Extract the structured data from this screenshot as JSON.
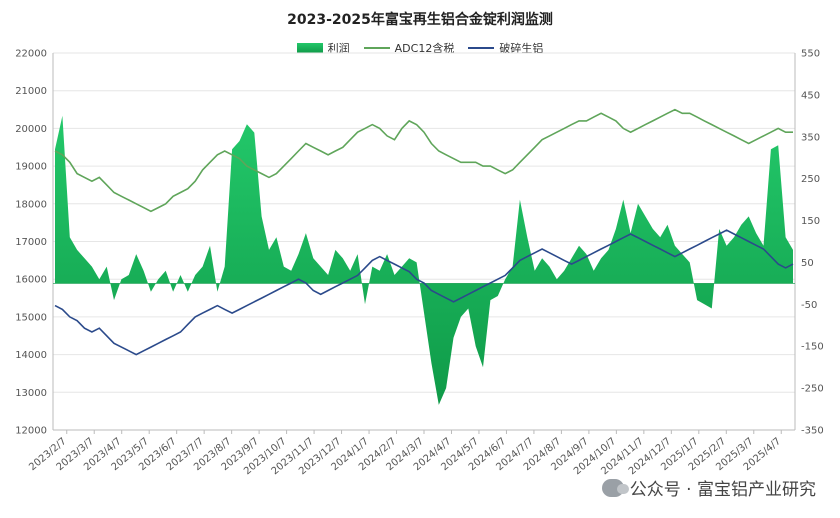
{
  "chart_data": {
    "type": "line",
    "title": "2023-2025年富宝再生铝合金锭利润监测",
    "legend": [
      "利润",
      "ADC12含税",
      "破碎生铝"
    ],
    "colors": {
      "profit_top": "#23c86a",
      "profit_bottom": "#0f9a48",
      "adc12": "#5fa55a",
      "scrap": "#2b4a8b"
    },
    "y_left": {
      "min": 12000,
      "max": 22000,
      "ticks": [
        12000,
        13000,
        14000,
        15000,
        16000,
        17000,
        18000,
        19000,
        20000,
        21000,
        22000
      ]
    },
    "y_right": {
      "min": -350,
      "max": 550,
      "ticks": [
        -350,
        -250,
        -150,
        -50,
        50,
        150,
        250,
        350,
        450,
        550
      ]
    },
    "x_labels": [
      "2023/2/7",
      "2023/3/7",
      "2023/4/7",
      "2023/5/7",
      "2023/6/7",
      "2023/7/7",
      "2023/8/7",
      "2023/9/7",
      "2023/10/7",
      "2023/11/7",
      "2023/12/7",
      "2024/1/7",
      "2024/2/7",
      "2024/3/7",
      "2024/4/7",
      "2024/5/7",
      "2024/6/7",
      "2024/7/7",
      "2024/8/7",
      "2024/9/7",
      "2024/10/7",
      "2024/11/7",
      "2024/12/7",
      "2025/1/7",
      "2025/2/7",
      "2025/3/7",
      "2025/4/7"
    ],
    "series": [
      {
        "name": "利润",
        "axis": "right",
        "values": [
          320,
          400,
          110,
          80,
          60,
          40,
          10,
          40,
          -40,
          10,
          20,
          70,
          30,
          -20,
          10,
          30,
          -20,
          20,
          -20,
          20,
          40,
          90,
          -20,
          40,
          320,
          340,
          380,
          360,
          160,
          80,
          110,
          40,
          30,
          70,
          120,
          60,
          40,
          20,
          80,
          60,
          30,
          70,
          -50,
          40,
          30,
          70,
          20,
          40,
          60,
          50,
          -70,
          -190,
          -290,
          -250,
          -130,
          -80,
          -60,
          -150,
          -200,
          -40,
          -30,
          10,
          40,
          200,
          110,
          30,
          60,
          40,
          10,
          30,
          60,
          90,
          70,
          30,
          60,
          80,
          130,
          200,
          120,
          190,
          160,
          130,
          110,
          140,
          90,
          70,
          50,
          -40,
          -50,
          -60,
          130,
          90,
          110,
          140,
          160,
          120,
          90,
          320,
          330,
          110,
          80
        ]
      },
      {
        "name": "ADC12含税",
        "axis": "left",
        "values": [
          19400,
          19300,
          19100,
          18800,
          18700,
          18600,
          18700,
          18500,
          18300,
          18200,
          18100,
          18000,
          17900,
          17800,
          17900,
          18000,
          18200,
          18300,
          18400,
          18600,
          18900,
          19100,
          19300,
          19400,
          19300,
          19200,
          19000,
          18900,
          18800,
          18700,
          18800,
          19000,
          19200,
          19400,
          19600,
          19500,
          19400,
          19300,
          19400,
          19500,
          19700,
          19900,
          20000,
          20100,
          20000,
          19800,
          19700,
          20000,
          20200,
          20100,
          19900,
          19600,
          19400,
          19300,
          19200,
          19100,
          19100,
          19100,
          19000,
          19000,
          18900,
          18800,
          18900,
          19100,
          19300,
          19500,
          19700,
          19800,
          19900,
          20000,
          20100,
          20200,
          20200,
          20300,
          20400,
          20300,
          20200,
          20000,
          19900,
          20000,
          20100,
          20200,
          20300,
          20400,
          20500,
          20400,
          20400,
          20300,
          20200,
          20100,
          20000,
          19900,
          19800,
          19700,
          19600,
          19700,
          19800,
          19900,
          20000,
          19900,
          19900
        ]
      },
      {
        "name": "破碎生铝",
        "axis": "left",
        "values": [
          15300,
          15200,
          15000,
          14900,
          14700,
          14600,
          14700,
          14500,
          14300,
          14200,
          14100,
          14000,
          14100,
          14200,
          14300,
          14400,
          14500,
          14600,
          14800,
          15000,
          15100,
          15200,
          15300,
          15200,
          15100,
          15200,
          15300,
          15400,
          15500,
          15600,
          15700,
          15800,
          15900,
          16000,
          15900,
          15700,
          15600,
          15700,
          15800,
          15900,
          16000,
          16100,
          16300,
          16500,
          16600,
          16500,
          16400,
          16300,
          16200,
          16000,
          15900,
          15700,
          15600,
          15500,
          15400,
          15500,
          15600,
          15700,
          15800,
          15900,
          16000,
          16100,
          16300,
          16500,
          16600,
          16700,
          16800,
          16700,
          16600,
          16500,
          16400,
          16500,
          16600,
          16700,
          16800,
          16900,
          17000,
          17100,
          17200,
          17100,
          17000,
          16900,
          16800,
          16700,
          16600,
          16700,
          16800,
          16900,
          17000,
          17100,
          17200,
          17300,
          17200,
          17100,
          17000,
          16900,
          16800,
          16600,
          16400,
          16300,
          16400
        ]
      }
    ]
  },
  "watermark": "公众号 · 富宝铝产业研究"
}
